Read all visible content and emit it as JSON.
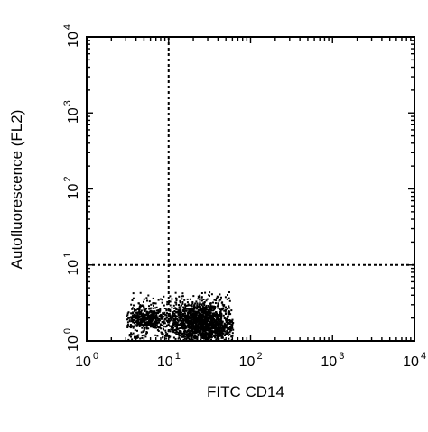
{
  "chart_data": {
    "type": "scatter",
    "title": "",
    "xlabel": "FITC CD14",
    "ylabel": "Autofluorescence (FL2)",
    "xscale": "log",
    "yscale": "log",
    "xlim": [
      1,
      10000
    ],
    "ylim": [
      1,
      10000
    ],
    "x_ticks": [
      {
        "base": "10",
        "exp": "0",
        "value": 1
      },
      {
        "base": "10",
        "exp": "1",
        "value": 10
      },
      {
        "base": "10",
        "exp": "2",
        "value": 100
      },
      {
        "base": "10",
        "exp": "3",
        "value": 1000
      },
      {
        "base": "10",
        "exp": "4",
        "value": 10000
      }
    ],
    "y_ticks": [
      {
        "base": "10",
        "exp": "0",
        "value": 1
      },
      {
        "base": "10",
        "exp": "1",
        "value": 10
      },
      {
        "base": "10",
        "exp": "2",
        "value": 100
      },
      {
        "base": "10",
        "exp": "3",
        "value": 1000
      },
      {
        "base": "10",
        "exp": "4",
        "value": 10000
      }
    ],
    "quadrant_gates": {
      "x": 10,
      "y": 10
    },
    "grid": false,
    "legend": "none",
    "population": {
      "description": "dense single-population dot plot cluster",
      "x_range": [
        3,
        60
      ],
      "y_range": [
        1,
        4.5
      ],
      "density_peak": [
        25,
        1.8
      ]
    },
    "colors": {
      "dots": "#000000",
      "axes": "#000000",
      "gates": "#000000"
    }
  }
}
